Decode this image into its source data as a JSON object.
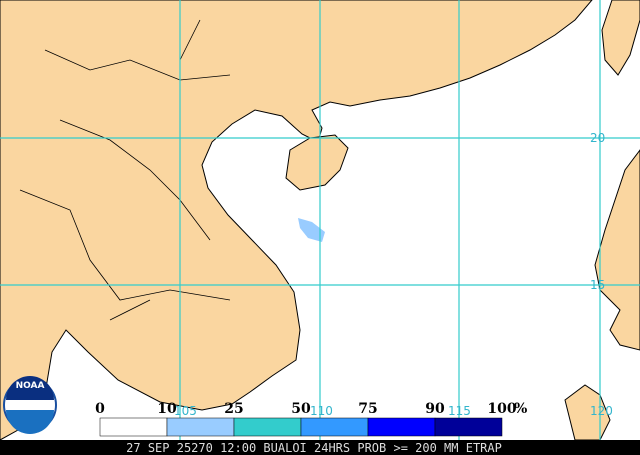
{
  "logo": "NOAA",
  "grid": {
    "longitudes": [
      "105",
      "110",
      "115",
      "120"
    ],
    "latitudes": [
      "20",
      "15"
    ]
  },
  "legend": {
    "labels": [
      0,
      10,
      25,
      50,
      75,
      90,
      100
    ],
    "unit": "%",
    "colors": [
      "#ffffff",
      "#99ccff",
      "#33cccc",
      "#3399ff",
      "#0000ff",
      "#000099"
    ]
  },
  "footer": "27 SEP 25270 12:00 BUALOI 24HRS PROB >= 200 MM ETRAP"
}
